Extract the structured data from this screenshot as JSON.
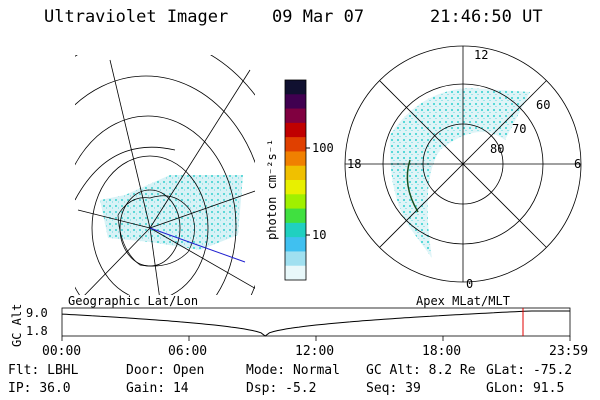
{
  "header": {
    "instrument": "Ultraviolet Imager",
    "date": "09 Mar 07",
    "time": "21:46:50 UT"
  },
  "colorbar": {
    "label": "photon cm⁻²s⁻¹",
    "ticks": [
      "100",
      "10"
    ],
    "colors": [
      "#101030",
      "#400050",
      "#800040",
      "#c00000",
      "#e04000",
      "#f08000",
      "#f0c000",
      "#e8f000",
      "#a0f000",
      "#40e040",
      "#20d0c0",
      "#40c0f0",
      "#a0e0f0",
      "#e8f8fa"
    ]
  },
  "polar_plot": {
    "mlt_labels": {
      "top": "12",
      "left": "18",
      "right": "6",
      "bottom": "0"
    },
    "lat_labels": [
      "60",
      "70",
      "80"
    ]
  },
  "map_labels": {
    "left": "Geographic Lat/Lon",
    "right": "Apex MLat/MLT"
  },
  "altitude_plot": {
    "ylabel": "GC Alt",
    "yticks": [
      "9.0",
      "1.8"
    ],
    "xticks": [
      "00:00",
      "06:00",
      "12:00",
      "18:00",
      "23:59"
    ],
    "current_hour": 21.78
  },
  "footer": {
    "row1": [
      {
        "label": "Flt:",
        "value": "LBHL"
      },
      {
        "label": "Door:",
        "value": "Open"
      },
      {
        "label": "Mode:",
        "value": "Normal"
      },
      {
        "label": "GC Alt:",
        "value": "8.2 Re"
      },
      {
        "label": "GLat:",
        "value": "-75.2"
      }
    ],
    "row2": [
      {
        "label": "IP:",
        "value": "36.0"
      },
      {
        "label": "Gain:",
        "value": "14"
      },
      {
        "label": "Dsp:",
        "value": "-5.2"
      },
      {
        "label": "Seq:",
        "value": "39"
      },
      {
        "label": "GLon:",
        "value": "91.5"
      }
    ]
  }
}
